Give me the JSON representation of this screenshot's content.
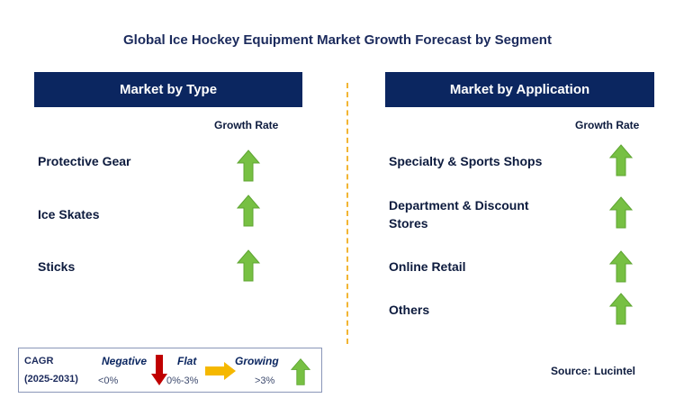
{
  "title": "Global Ice Hockey Equipment Market Growth Forecast by Segment",
  "left_panel": {
    "header": "Market by Type",
    "growth_label": "Growth Rate",
    "items": [
      {
        "label": "Protective Gear",
        "trend": "growing"
      },
      {
        "label": "Ice Skates",
        "trend": "growing"
      },
      {
        "label": "Sticks",
        "trend": "growing"
      }
    ]
  },
  "right_panel": {
    "header": "Market by Application",
    "growth_label": "Growth Rate",
    "items": [
      {
        "label_line1": "Specialty & Sports Shops",
        "label_line2": "",
        "trend": "growing"
      },
      {
        "label_line1": "Department & Discount",
        "label_line2": "Stores",
        "trend": "growing"
      },
      {
        "label_line1": "Online Retail",
        "label_line2": "",
        "trend": "growing"
      },
      {
        "label_line1": "Others",
        "label_line2": "",
        "trend": "growing"
      }
    ]
  },
  "legend": {
    "cagr_label": "CAGR",
    "period": "(2025-2031)",
    "negative_label": "Negative",
    "negative_range": "<0%",
    "flat_label": "Flat",
    "flat_range": "0%-3%",
    "growing_label": "Growing",
    "growing_range": ">3%"
  },
  "source": "Source: Lucintel",
  "colors": {
    "header_bg": "#0b2660",
    "growing_arrow": "#77c043",
    "negative_arrow": "#c00000",
    "flat_arrow": "#f5b800",
    "divider": "#f2b533"
  }
}
